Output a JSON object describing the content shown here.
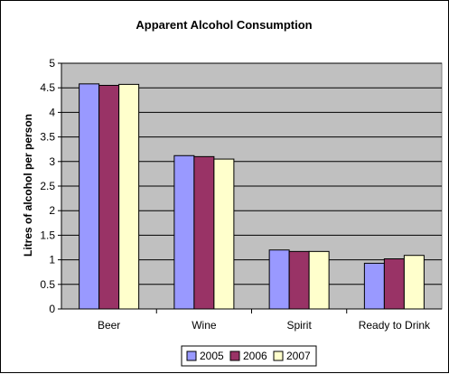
{
  "chart_data": {
    "type": "bar",
    "title": "Apparent Alcohol Consumption",
    "xlabel": "",
    "ylabel": "Litres of alcohol per person",
    "categories": [
      "Beer",
      "Wine",
      "Spirit",
      "Ready to Drink"
    ],
    "series": [
      {
        "name": "2005",
        "color": "#9999ff",
        "values": [
          4.58,
          3.12,
          1.2,
          0.93
        ]
      },
      {
        "name": "2006",
        "color": "#993366",
        "values": [
          4.55,
          3.1,
          1.17,
          1.02
        ]
      },
      {
        "name": "2007",
        "color": "#ffffcc",
        "values": [
          4.57,
          3.05,
          1.17,
          1.09
        ]
      }
    ],
    "ylim": [
      0,
      5
    ],
    "yticks": [
      "0",
      "0.5",
      "1",
      "1.5",
      "2",
      "2.5",
      "3",
      "3.5",
      "4",
      "4.5",
      "5"
    ],
    "grid": true,
    "legend_position": "bottom",
    "plot_background": "#c0c0c0"
  }
}
